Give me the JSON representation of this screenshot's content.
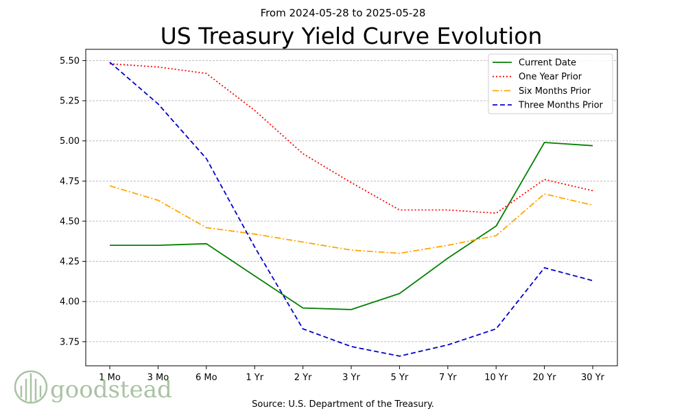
{
  "chart_data": {
    "type": "line",
    "subtitle": "From 2024-05-28 to 2025-05-28",
    "title": "US Treasury Yield Curve Evolution",
    "xlabel": "",
    "ylabel": "",
    "categories": [
      "1 Mo",
      "3 Mo",
      "6 Mo",
      "1 Yr",
      "2 Yr",
      "3 Yr",
      "5 Yr",
      "7 Yr",
      "10 Yr",
      "20 Yr",
      "30 Yr"
    ],
    "ylim": [
      3.6,
      5.57
    ],
    "yticks": [
      "3.75",
      "4.00",
      "4.25",
      "4.50",
      "4.75",
      "5.00",
      "5.25",
      "5.50"
    ],
    "grid": "horizontal dashed",
    "legend_position": "top-right",
    "series": [
      {
        "name": "Current Date",
        "color": "#008000",
        "style": "solid",
        "values": [
          4.35,
          4.35,
          4.36,
          4.16,
          3.96,
          3.95,
          4.05,
          4.27,
          4.47,
          4.99,
          4.97
        ]
      },
      {
        "name": "One Year Prior",
        "color": "#ff0000",
        "style": "dotted",
        "values": [
          5.48,
          5.46,
          5.42,
          5.19,
          4.92,
          4.74,
          4.57,
          4.57,
          4.55,
          4.76,
          4.69
        ]
      },
      {
        "name": "Six Months Prior",
        "color": "#ffa500",
        "style": "dashdot",
        "values": [
          4.72,
          4.63,
          4.46,
          4.42,
          4.37,
          4.32,
          4.3,
          4.35,
          4.41,
          4.67,
          4.6
        ]
      },
      {
        "name": "Three Months Prior",
        "color": "#0000cd",
        "style": "dashed",
        "values": [
          5.49,
          5.23,
          4.89,
          4.34,
          3.83,
          3.72,
          3.66,
          3.73,
          3.83,
          4.21,
          4.13
        ]
      }
    ]
  },
  "source_text": "Source: U.S. Department of the Treasury.",
  "logo": {
    "text": "goodstead"
  }
}
